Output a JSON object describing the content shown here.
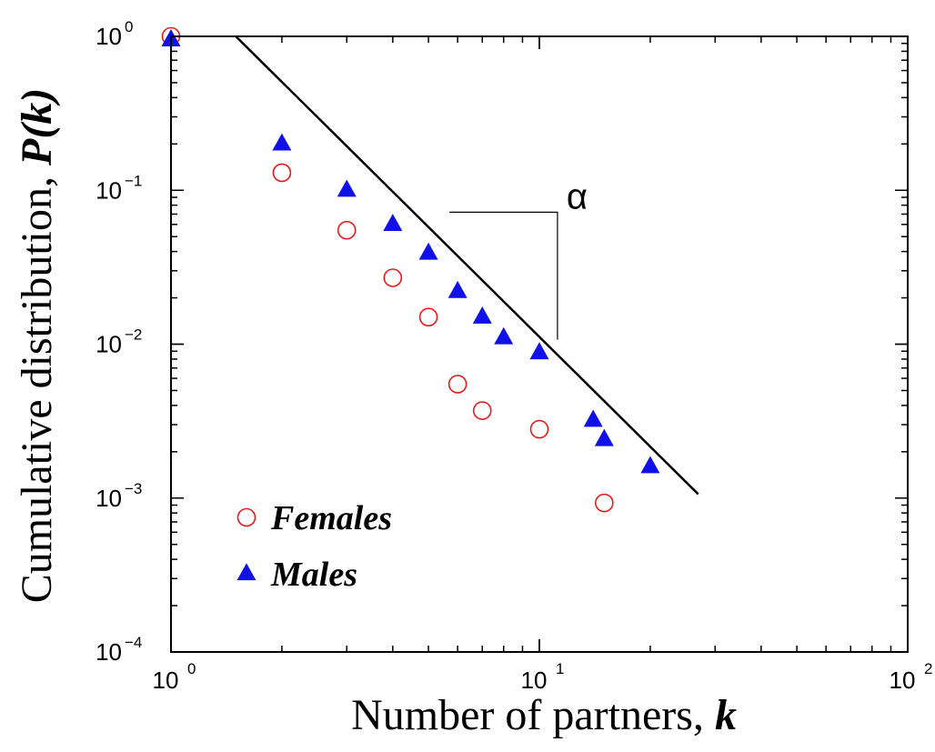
{
  "chart_data": {
    "type": "scatter",
    "xscale": "log",
    "yscale": "log",
    "xlim": [
      1,
      100
    ],
    "ylim": [
      0.0001,
      1
    ],
    "grid": false,
    "xlabel_text": "Number of partners, ",
    "xlabel_var": "k",
    "ylabel_text": "Cumulative distribution, ",
    "ylabel_var": "P(k)",
    "x_ticks": [
      {
        "value": 1,
        "base": "10",
        "exp": "0"
      },
      {
        "value": 10,
        "base": "10",
        "exp": "1"
      },
      {
        "value": 100,
        "base": "10",
        "exp": "2"
      }
    ],
    "y_ticks": [
      {
        "value": 1,
        "base": "10",
        "exp": "0"
      },
      {
        "value": 0.1,
        "base": "10",
        "exp": "−1"
      },
      {
        "value": 0.01,
        "base": "10",
        "exp": "−2"
      },
      {
        "value": 0.001,
        "base": "10",
        "exp": "−3"
      },
      {
        "value": 0.0001,
        "base": "10",
        "exp": "−4"
      }
    ],
    "legend_position": "bottom-left",
    "series": [
      {
        "name": "Females",
        "marker": "open-circle",
        "color": "#e8191b",
        "points": [
          {
            "x": 1,
            "y": 1.0
          },
          {
            "x": 2,
            "y": 0.13
          },
          {
            "x": 3,
            "y": 0.055
          },
          {
            "x": 4,
            "y": 0.027
          },
          {
            "x": 5,
            "y": 0.015
          },
          {
            "x": 6,
            "y": 0.0055
          },
          {
            "x": 7,
            "y": 0.0037
          },
          {
            "x": 10,
            "y": 0.0028
          },
          {
            "x": 15,
            "y": 0.00093
          }
        ]
      },
      {
        "name": "Males",
        "marker": "filled-triangle",
        "color": "#1010e8",
        "points": [
          {
            "x": 1,
            "y": 0.95
          },
          {
            "x": 2,
            "y": 0.2
          },
          {
            "x": 3,
            "y": 0.1
          },
          {
            "x": 4,
            "y": 0.06
          },
          {
            "x": 5,
            "y": 0.039
          },
          {
            "x": 6,
            "y": 0.022
          },
          {
            "x": 7,
            "y": 0.015
          },
          {
            "x": 8,
            "y": 0.011
          },
          {
            "x": 10,
            "y": 0.0088
          },
          {
            "x": 14,
            "y": 0.0032
          },
          {
            "x": 15,
            "y": 0.0024
          },
          {
            "x": 20,
            "y": 0.0016
          }
        ]
      }
    ],
    "fit_line": {
      "points": [
        {
          "x": 1.5,
          "y": 1.0
        },
        {
          "x": 27,
          "y": 0.00106
        }
      ]
    },
    "slope_annotation": {
      "label": "α",
      "corner": {
        "x": 11.2,
        "y": 0.072
      },
      "left_x": 5.7,
      "bottom_y": 0.0107
    }
  }
}
